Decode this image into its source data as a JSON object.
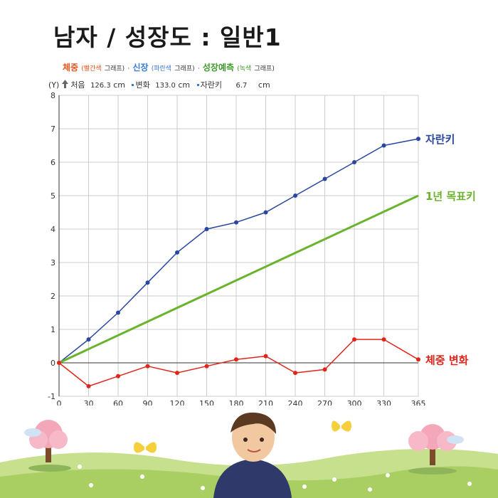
{
  "page": {
    "title": "남자 / 성장도 : 일반1",
    "legend": {
      "weight": "체중",
      "weight_note": "(빨간색",
      "graph": "그래프)",
      "sep": "·",
      "height": "신장",
      "height_note": "(파란색",
      "forecast": "성장예측",
      "forecast_note": "(녹색"
    },
    "info": {
      "y_label": "(Y)",
      "start_label": "처음",
      "start_value": "126.3",
      "unit": "cm",
      "change_label": "변화",
      "change_value": "133.0",
      "growth_label": "자란키",
      "growth_value": "6.7"
    },
    "colors": {
      "height": "#2a47a0",
      "weight": "#e0251b",
      "forecast": "#6ab42d",
      "grid": "#cccccc"
    }
  },
  "chart_data": {
    "type": "line",
    "x": [
      0,
      30,
      60,
      90,
      120,
      150,
      180,
      210,
      240,
      270,
      300,
      330,
      365
    ],
    "xlim": [
      0,
      365
    ],
    "ylim": [
      -1,
      8
    ],
    "x_ticks": [
      0,
      30,
      60,
      90,
      120,
      150,
      180,
      210,
      240,
      270,
      300,
      330,
      365
    ],
    "y_ticks": [
      -1,
      0,
      1,
      2,
      3,
      4,
      5,
      6,
      7,
      8
    ],
    "grid": true,
    "series": [
      {
        "name": "자란키",
        "color": "#2a47a0",
        "markers": true,
        "values": [
          0,
          0.7,
          1.5,
          2.4,
          3.3,
          4.0,
          4.2,
          4.5,
          5.0,
          5.5,
          6.0,
          6.5,
          6.7
        ]
      },
      {
        "name": "1년 목표키",
        "color": "#6ab42d",
        "markers": false,
        "x": [
          0,
          365
        ],
        "values": [
          0,
          5
        ]
      },
      {
        "name": "체중 변화",
        "color": "#e0251b",
        "markers": true,
        "values": [
          0,
          -0.7,
          -0.4,
          -0.1,
          -0.3,
          -0.1,
          0.1,
          0.2,
          -0.3,
          -0.2,
          0.7,
          0.7,
          0.1
        ]
      }
    ]
  }
}
